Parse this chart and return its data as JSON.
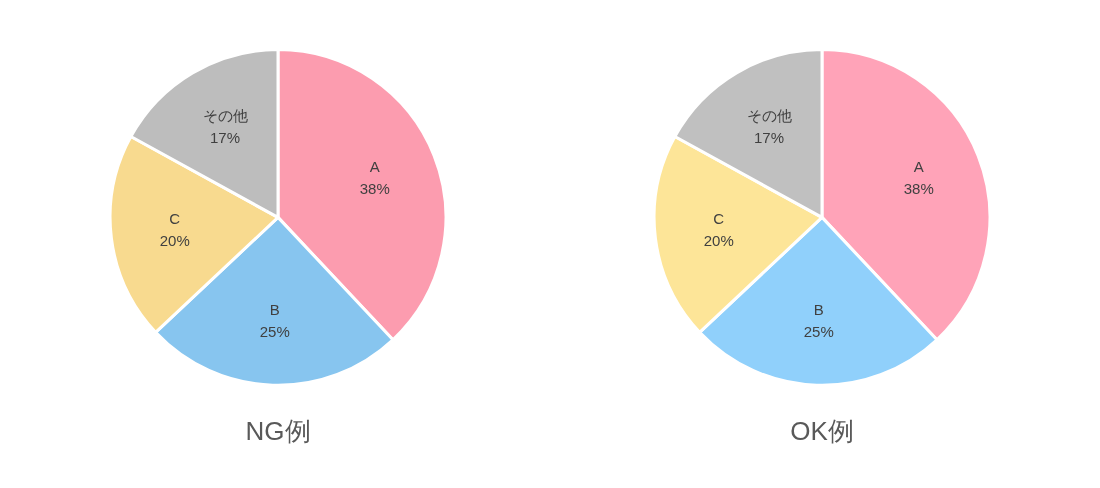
{
  "chart_data": [
    {
      "type": "pie",
      "title": "NG例",
      "categories": [
        "A",
        "B",
        "C",
        "その他"
      ],
      "values": [
        38,
        25,
        20,
        17
      ],
      "colors": [
        "#fc9caf",
        "#87c5ef",
        "#f8da8f",
        "#bdbdbd"
      ],
      "value_labels": [
        "38%",
        "25%",
        "20%",
        "17%"
      ]
    },
    {
      "type": "pie",
      "title": "OK例",
      "categories": [
        "A",
        "B",
        "C",
        "その他"
      ],
      "values": [
        38,
        25,
        20,
        17
      ],
      "colors": [
        "#ffa3b8",
        "#90d0fb",
        "#fde598",
        "#c0c0c0"
      ],
      "value_labels": [
        "38%",
        "25%",
        "20%",
        "17%"
      ]
    }
  ]
}
